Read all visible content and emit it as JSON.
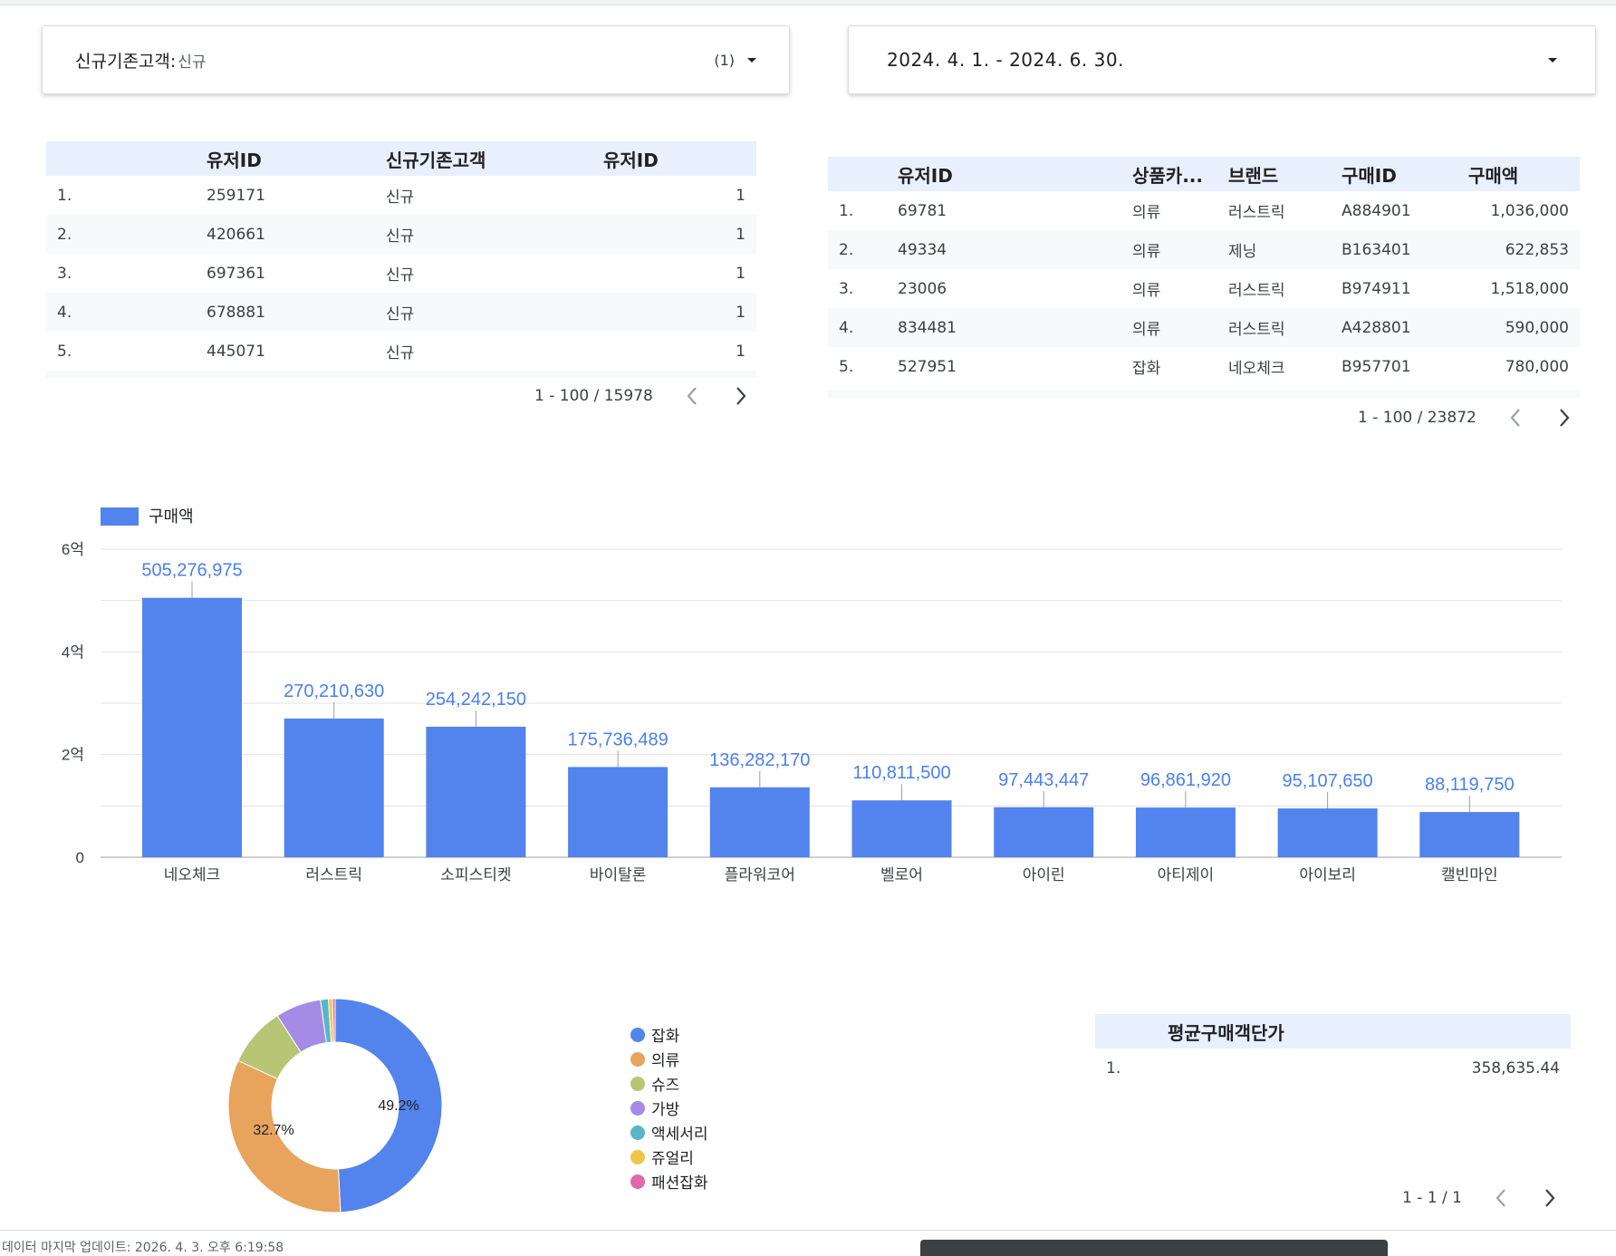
{
  "filter_control": {
    "label": "신규기존고객",
    "colon": ":",
    "value": "신규",
    "count": "(1)"
  },
  "date_control": {
    "value": "2024. 4. 1. - 2024. 6. 30."
  },
  "table1": {
    "headers": [
      "유저ID",
      "신규기존고객",
      "유저ID"
    ],
    "rows": [
      [
        "1.",
        "259171",
        "신규",
        "1"
      ],
      [
        "2.",
        "420661",
        "신규",
        "1"
      ],
      [
        "3.",
        "697361",
        "신규",
        "1"
      ],
      [
        "4.",
        "678881",
        "신규",
        "1"
      ],
      [
        "5.",
        "445071",
        "신규",
        "1"
      ]
    ],
    "pagination": "1 - 100 / 15978"
  },
  "table2": {
    "headers": [
      "유저ID",
      "상품카...",
      "브랜드",
      "구매ID",
      "구매액"
    ],
    "rows": [
      [
        "1.",
        "69781",
        "의류",
        "러스트릭",
        "A884901",
        "1,036,000"
      ],
      [
        "2.",
        "49334",
        "의류",
        "제닝",
        "B163401",
        "622,853"
      ],
      [
        "3.",
        "23006",
        "의류",
        "러스트릭",
        "B974911",
        "1,518,000"
      ],
      [
        "4.",
        "834481",
        "의류",
        "러스트릭",
        "A428801",
        "590,000"
      ],
      [
        "5.",
        "527951",
        "잡화",
        "네오체크",
        "B957701",
        "780,000"
      ]
    ],
    "pagination": "1 - 100 / 23872"
  },
  "chart_data": [
    {
      "type": "bar",
      "legend": [
        "구매액"
      ],
      "categories": [
        "네오체크",
        "러스트릭",
        "소피스티켓",
        "바이탈론",
        "플라워코어",
        "벨로어",
        "아이린",
        "아티제이",
        "아이보리",
        "캘빈마인"
      ],
      "series": [
        {
          "name": "구매액",
          "values": [
            505276975,
            270210630,
            254242150,
            175736489,
            136282170,
            110811500,
            97443447,
            96861920,
            95107650,
            88119750
          ]
        }
      ],
      "data_labels": [
        "505,276,975",
        "270,210,630",
        "254,242,150",
        "175,736,489",
        "136,282,170",
        "110,811,500",
        "97,443,447",
        "96,861,920",
        "95,107,650",
        "88,119,750"
      ],
      "y_ticks": [
        0,
        200000000,
        400000000,
        600000000
      ],
      "y_tick_labels": [
        "0",
        "2억",
        "4억",
        "6억"
      ],
      "ylim": [
        0,
        600000000
      ],
      "grid": true,
      "legend_position": "top-left",
      "color": "#5383ec"
    },
    {
      "type": "pie",
      "style": "donut",
      "labels": [
        "잡화",
        "의류",
        "슈즈",
        "가방",
        "액세서리",
        "쥬얼리",
        "패션잡화"
      ],
      "values": [
        49.2,
        32.7,
        9.0,
        6.9,
        1.2,
        0.6,
        0.4
      ],
      "shown_labels": [
        "49.2%",
        "32.7%"
      ],
      "colors": [
        "#5383ec",
        "#e8a35d",
        "#b7c574",
        "#a58be6",
        "#58b6c8",
        "#f0c64a",
        "#e06aa9"
      ],
      "legend_position": "right"
    }
  ],
  "table3": {
    "headers": [
      "평균구매객단가"
    ],
    "rows": [
      [
        "1.",
        "358,635.44"
      ]
    ],
    "pagination": "1 - 1 / 1"
  },
  "footer": {
    "last_updated": "데이터 마지막 업데이트: 2026. 4. 3. 오후 6:19:58"
  }
}
